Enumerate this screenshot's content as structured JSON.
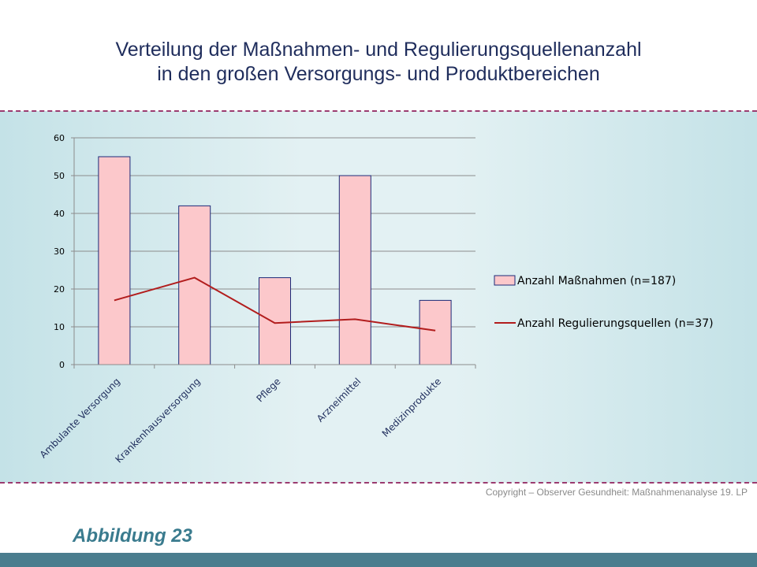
{
  "title_line1": "Verteilung der Maßnahmen- und Regulierungsquellenanzahl",
  "title_line2": "in den großen Versorgungs- und Produktbereichen",
  "copyright": "Copyright – Observer Gesundheit: Maßnahmenanalyse 19. LP",
  "figure_label": "Abbildung 23",
  "colors": {
    "bar_fill": "#fcc8cb",
    "bar_stroke": "#1c2a78",
    "line": "#b21d1d",
    "title": "#1f2d5c",
    "figure_label": "#3a7b8e",
    "dash": "#9b3b6f"
  },
  "chart_data": {
    "type": "bar",
    "categories": [
      "Ambulante Versorgung",
      "Krankenhausversorgung",
      "Pflege",
      "Arzneimittel",
      "Medizinprodukte"
    ],
    "series": [
      {
        "name": "Anzahl Maßnahmen (n=187)",
        "type": "bar",
        "values": [
          55,
          42,
          23,
          50,
          17
        ]
      },
      {
        "name": "Anzahl Regulierungsquellen (n=37)",
        "type": "line",
        "values": [
          17,
          23,
          11,
          12,
          9
        ]
      }
    ],
    "yticks": [
      0,
      10,
      20,
      30,
      40,
      50,
      60
    ],
    "ylim": [
      0,
      60
    ],
    "grid": true,
    "legend": "right"
  }
}
